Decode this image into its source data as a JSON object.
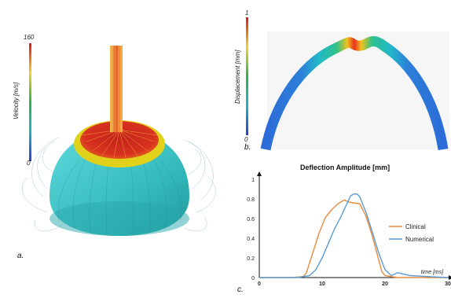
{
  "panel_a": {
    "letter": "a.",
    "colorbar": {
      "label": "Velocity [m/s]",
      "max": "160",
      "min": "0"
    }
  },
  "panel_b": {
    "letter": "b.",
    "colorbar": {
      "label": "Displacement [mm]",
      "max": "1",
      "min": "0"
    }
  },
  "panel_c": {
    "letter": "c."
  },
  "colors": {
    "clinical": "#e8893a",
    "numerical": "#5b9bd5",
    "dome": "#3cc6c8",
    "jet_core": "#d62a1e",
    "ring": "#e0d11a"
  },
  "chart_data": {
    "type": "line",
    "title": "Deflection Amplitude [mm]",
    "xlabel": "time [ms]",
    "ylabel": "",
    "xlim": [
      0,
      30
    ],
    "ylim": [
      0,
      1
    ],
    "xticks": [
      "0",
      "10",
      "20",
      "30"
    ],
    "yticks": [
      "0",
      "0.2",
      "0.4",
      "0.6",
      "0.8",
      "1"
    ],
    "legend_position": "right",
    "series": [
      {
        "name": "Clinical",
        "color": "#e8893a",
        "x": [
          0,
          5,
          7,
          7.5,
          8.5,
          9.5,
          10.5,
          11.5,
          12.5,
          13.5,
          14.2,
          15,
          16,
          17,
          18,
          19,
          19.5,
          20,
          21,
          22,
          25,
          30
        ],
        "y": [
          0,
          0,
          0.01,
          0.05,
          0.25,
          0.45,
          0.61,
          0.69,
          0.75,
          0.79,
          0.77,
          0.76,
          0.75,
          0.62,
          0.42,
          0.18,
          0.06,
          0.02,
          0.01,
          0,
          0,
          0
        ]
      },
      {
        "name": "Numerical",
        "color": "#5b9bd5",
        "x": [
          0,
          6,
          8,
          9,
          10,
          11,
          12,
          13,
          14,
          14.5,
          15,
          15.6,
          16,
          17,
          18,
          19,
          20,
          21,
          22,
          24,
          27,
          30
        ],
        "y": [
          0,
          0,
          0.02,
          0.08,
          0.2,
          0.35,
          0.5,
          0.62,
          0.76,
          0.83,
          0.85,
          0.85,
          0.82,
          0.66,
          0.46,
          0.25,
          0.08,
          0.02,
          0.05,
          0.02,
          0.01,
          0
        ]
      }
    ]
  }
}
